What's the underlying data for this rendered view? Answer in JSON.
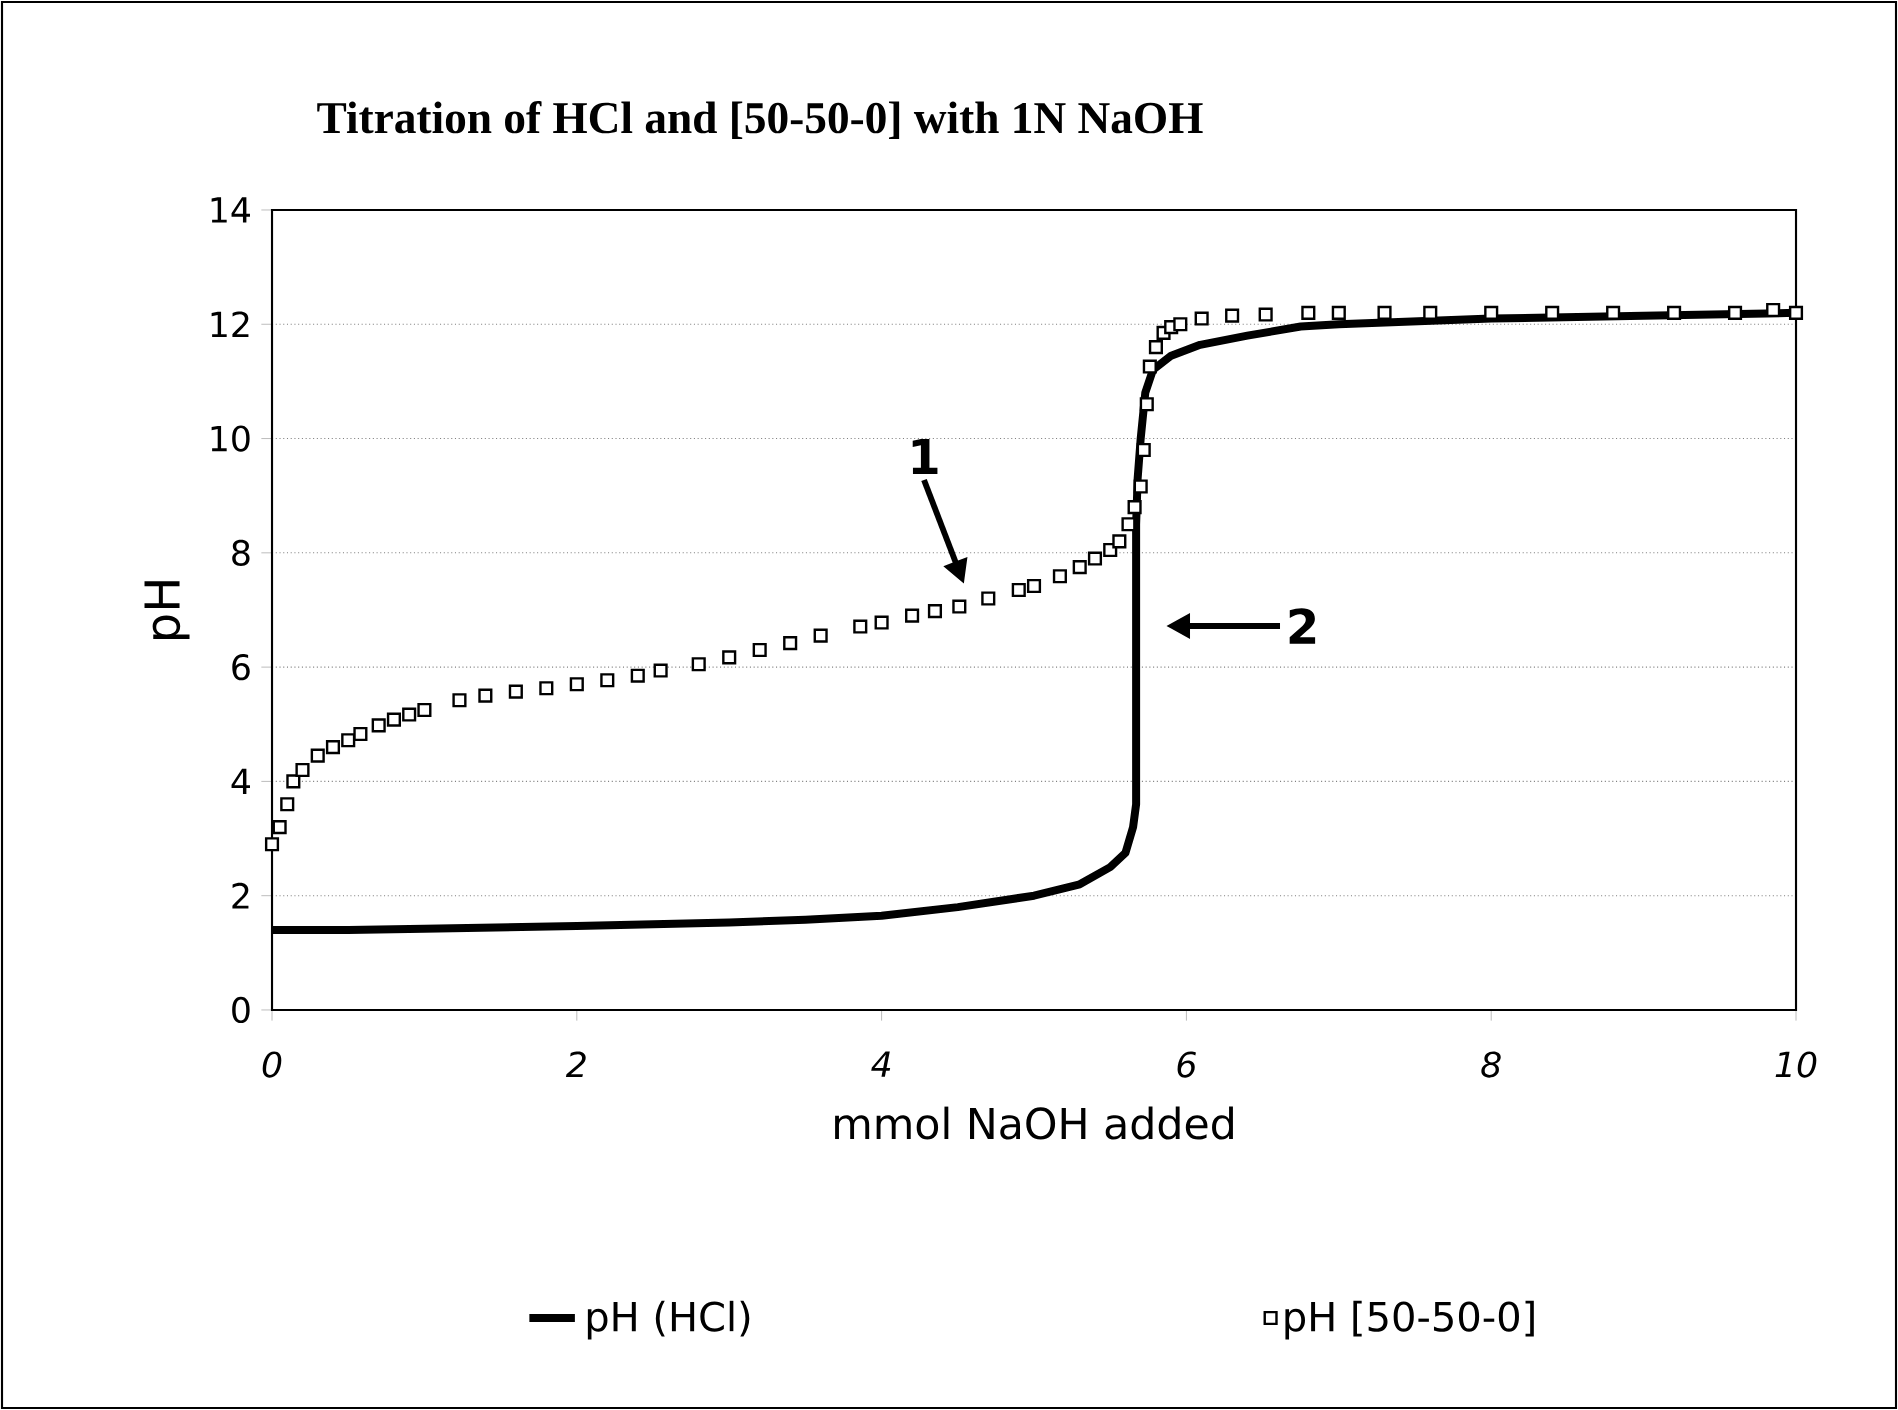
{
  "chart_data": {
    "type": "line",
    "title": "Titration of HCl and [50-50-0] with 1N NaOH",
    "xlabel": "mmol NaOH added",
    "ylabel": "pH",
    "xlim": [
      0,
      10
    ],
    "ylim": [
      0,
      14
    ],
    "xticks": [
      0,
      2,
      4,
      6,
      8,
      10
    ],
    "yticks": [
      0,
      2,
      4,
      6,
      8,
      10,
      12,
      14
    ],
    "grid": "y",
    "legend": "bottom",
    "series": [
      {
        "name": "pH (HCl)",
        "marker": "none",
        "color": "#000000",
        "x": [
          0,
          0.5,
          1,
          2,
          3,
          3.5,
          4,
          4.5,
          5,
          5.3,
          5.5,
          5.6,
          5.65,
          5.67,
          5.67,
          5.68,
          5.7,
          5.73,
          5.78,
          5.9,
          6.09,
          6.4,
          6.75,
          7,
          7.5,
          8,
          9,
          10
        ],
        "values": [
          1.4,
          1.4,
          1.42,
          1.47,
          1.53,
          1.58,
          1.65,
          1.8,
          2.0,
          2.2,
          2.5,
          2.75,
          3.2,
          3.6,
          8.5,
          9.3,
          10.0,
          10.8,
          11.2,
          11.45,
          11.64,
          11.8,
          11.96,
          12.0,
          12.05,
          12.1,
          12.15,
          12.2
        ]
      },
      {
        "name": "pH [50-50-0]",
        "type": "scatter",
        "marker": "square",
        "color": "#000000",
        "x": [
          0,
          0.05,
          0.1,
          0.14,
          0.2,
          0.3,
          0.4,
          0.5,
          0.58,
          0.7,
          0.8,
          0.9,
          1.0,
          1.23,
          1.4,
          1.6,
          1.8,
          2.0,
          2.2,
          2.4,
          2.55,
          2.8,
          3.0,
          3.2,
          3.4,
          3.6,
          3.86,
          4.0,
          4.2,
          4.35,
          4.51,
          4.7,
          4.9,
          5.0,
          5.17,
          5.3,
          5.4,
          5.5,
          5.56,
          5.62,
          5.66,
          5.7,
          5.72,
          5.74,
          5.76,
          5.8,
          5.85,
          5.9,
          5.96,
          6.1,
          6.3,
          6.52,
          6.8,
          7.0,
          7.3,
          7.6,
          8.0,
          8.4,
          8.8,
          9.2,
          9.6,
          9.85,
          10.0
        ],
        "values": [
          2.9,
          3.2,
          3.6,
          4.0,
          4.2,
          4.45,
          4.6,
          4.72,
          4.83,
          4.98,
          5.08,
          5.17,
          5.25,
          5.42,
          5.5,
          5.57,
          5.63,
          5.7,
          5.77,
          5.85,
          5.94,
          6.05,
          6.17,
          6.3,
          6.42,
          6.55,
          6.71,
          6.78,
          6.9,
          6.98,
          7.06,
          7.2,
          7.35,
          7.42,
          7.59,
          7.75,
          7.9,
          8.05,
          8.2,
          8.5,
          8.8,
          9.16,
          9.8,
          10.6,
          11.26,
          11.6,
          11.85,
          11.95,
          12.0,
          12.1,
          12.15,
          12.17,
          12.2,
          12.2,
          12.2,
          12.2,
          12.2,
          12.2,
          12.2,
          12.2,
          12.2,
          12.25,
          12.2
        ]
      }
    ],
    "annotations": [
      "1",
      "2"
    ]
  }
}
